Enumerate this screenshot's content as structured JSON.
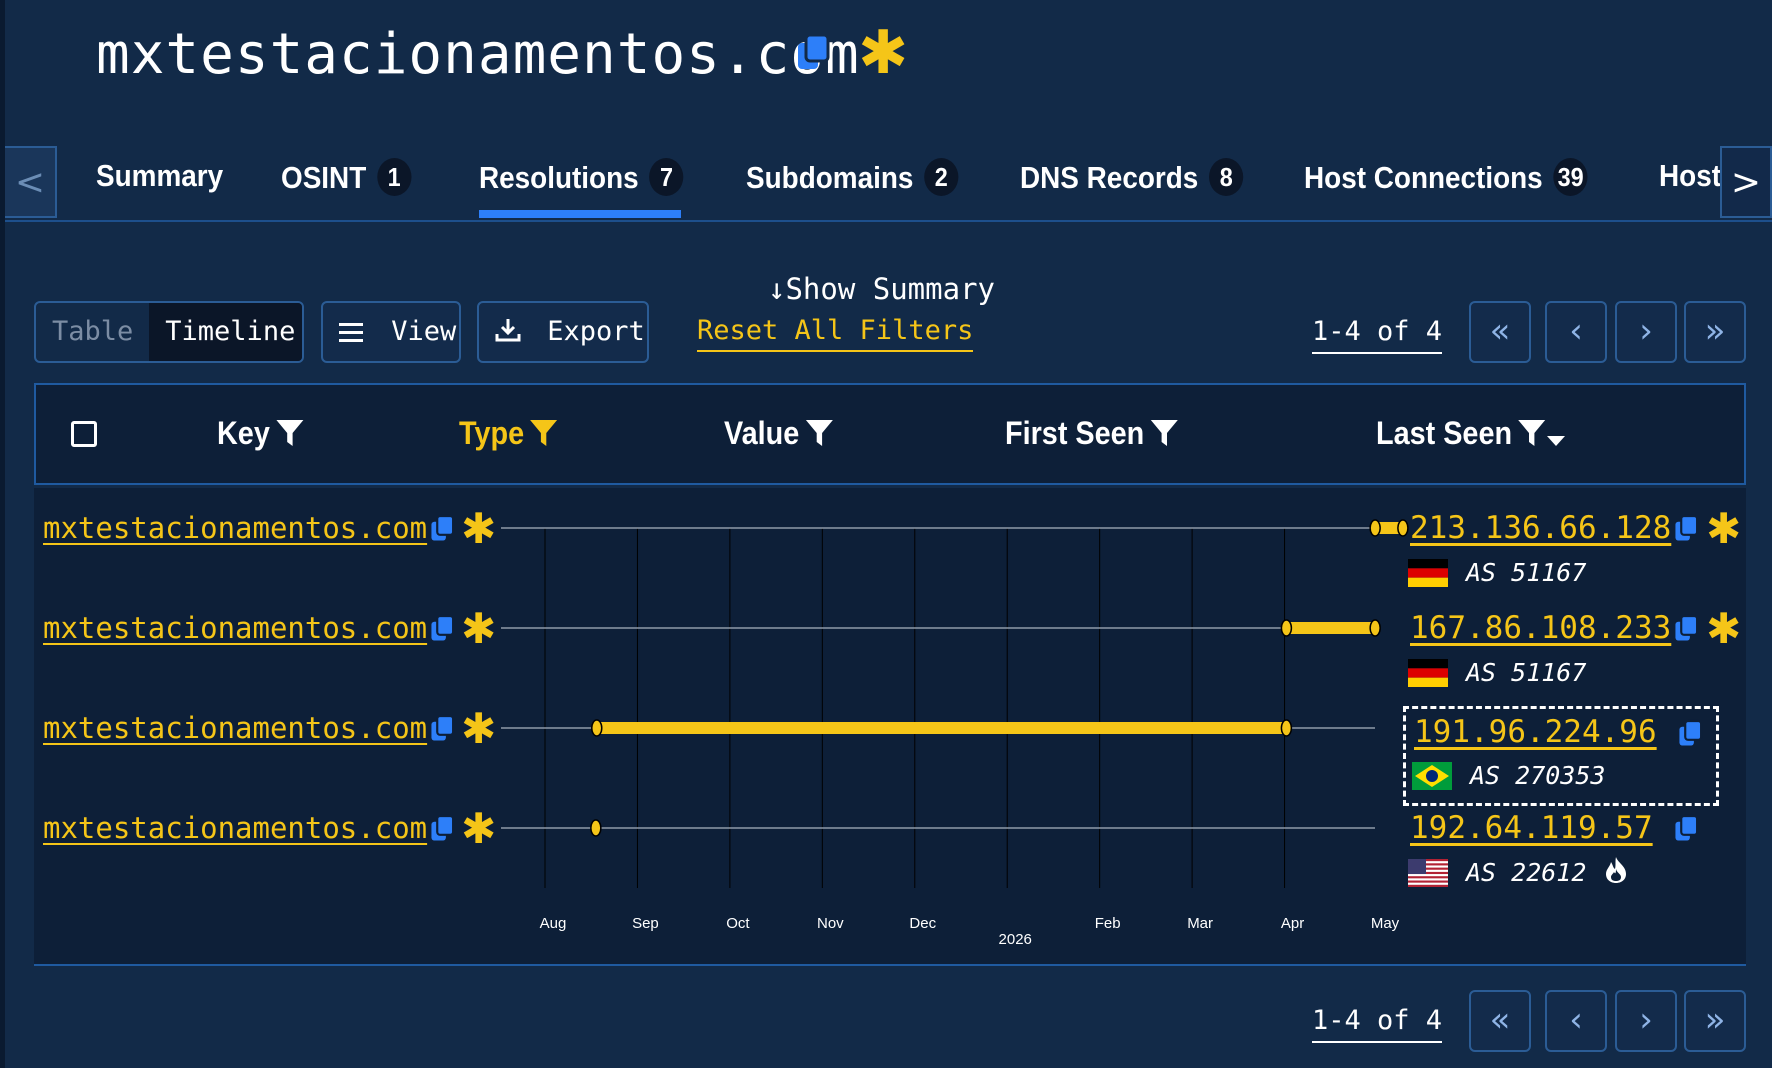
{
  "page": {
    "title": "mxtestacionamentos.com",
    "accent_color": "#f5c518",
    "link_color": "#2d7ff9",
    "background": "#122a48"
  },
  "tabs": [
    {
      "label": "Summary",
      "count": ""
    },
    {
      "label": "OSINT",
      "count": "1"
    },
    {
      "label": "Resolutions",
      "count": "7",
      "active": true
    },
    {
      "label": "Subdomains",
      "count": "2"
    },
    {
      "label": "DNS Records",
      "count": "8"
    },
    {
      "label": "Host Connections",
      "count": "39"
    },
    {
      "label": "Host",
      "count": ""
    }
  ],
  "tab_nav": {
    "prev": "<",
    "next": ">"
  },
  "view_toggle": {
    "table": "Table",
    "timeline": "Timeline",
    "selected": "Timeline"
  },
  "buttons": {
    "view": "View",
    "export": "Export"
  },
  "show_summary": "Show Summary",
  "reset_filters": "Reset All Filters",
  "pagination": {
    "range": "1-4 of 4",
    "first": "«",
    "prev": "‹",
    "next": "›",
    "last": "»"
  },
  "columns": {
    "key": "Key",
    "type": "Type",
    "value": "Value",
    "first_seen": "First Seen",
    "last_seen": "Last Seen"
  },
  "timeline_axis": {
    "months": [
      "Aug",
      "Sep",
      "Oct",
      "Nov",
      "Dec",
      "2026",
      "Feb",
      "Mar",
      "Apr",
      "May"
    ]
  },
  "rows": [
    {
      "key": "mxtestacionamentos.com",
      "ip": "213.136.66.128",
      "asn": "AS 51167",
      "country": "DE",
      "starred": true,
      "start_month": 8.98,
      "end_month": 9.28
    },
    {
      "key": "mxtestacionamentos.com",
      "ip": "167.86.108.233",
      "asn": "AS 51167",
      "country": "DE",
      "starred": true,
      "start_month": 8.02,
      "end_month": 8.98
    },
    {
      "key": "mxtestacionamentos.com",
      "ip": "191.96.224.96",
      "asn": "AS 270353",
      "country": "BR",
      "starred": false,
      "highlighted": true,
      "start_month": 0.56,
      "end_month": 8.02
    },
    {
      "key": "mxtestacionamentos.com",
      "ip": "192.64.119.57",
      "asn": "AS 22612",
      "country": "US",
      "starred": false,
      "fire": true,
      "start_month": 0.55,
      "end_month": 0.55
    }
  ]
}
